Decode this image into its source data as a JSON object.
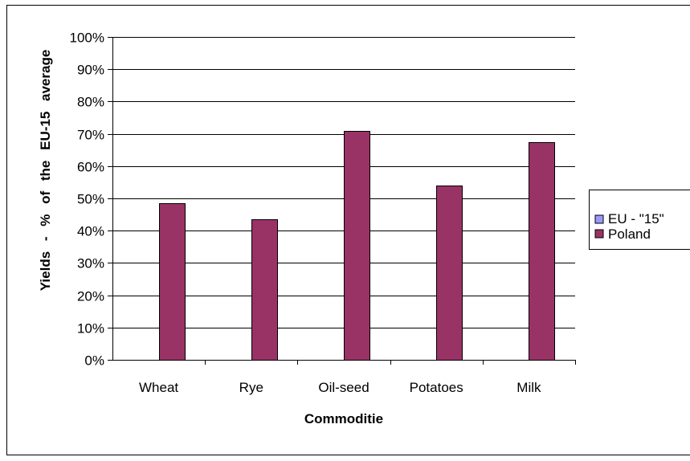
{
  "chart_data": {
    "type": "bar",
    "title": "",
    "xlabel": "Commoditie",
    "ylabel": "Yields - % of the EU-15 average",
    "categories": [
      "Wheat",
      "Rye",
      "Oil-seed",
      "Potatoes",
      "Milk"
    ],
    "series": [
      {
        "name": "EU - \"15\"",
        "values": [
          null,
          null,
          null,
          null,
          null
        ],
        "color": "#9999ff"
      },
      {
        "name": "Poland",
        "values": [
          48.5,
          43.5,
          71,
          54,
          67.5
        ],
        "color": "#993366"
      }
    ],
    "ylim": [
      0,
      100
    ],
    "yticks": [
      0,
      10,
      20,
      30,
      40,
      50,
      60,
      70,
      80,
      90,
      100
    ],
    "ytick_labels": [
      "0%",
      "10%",
      "20%",
      "30%",
      "40%",
      "50%",
      "60%",
      "70%",
      "80%",
      "90%",
      "100%"
    ],
    "grid": true,
    "legend_position": "right"
  }
}
